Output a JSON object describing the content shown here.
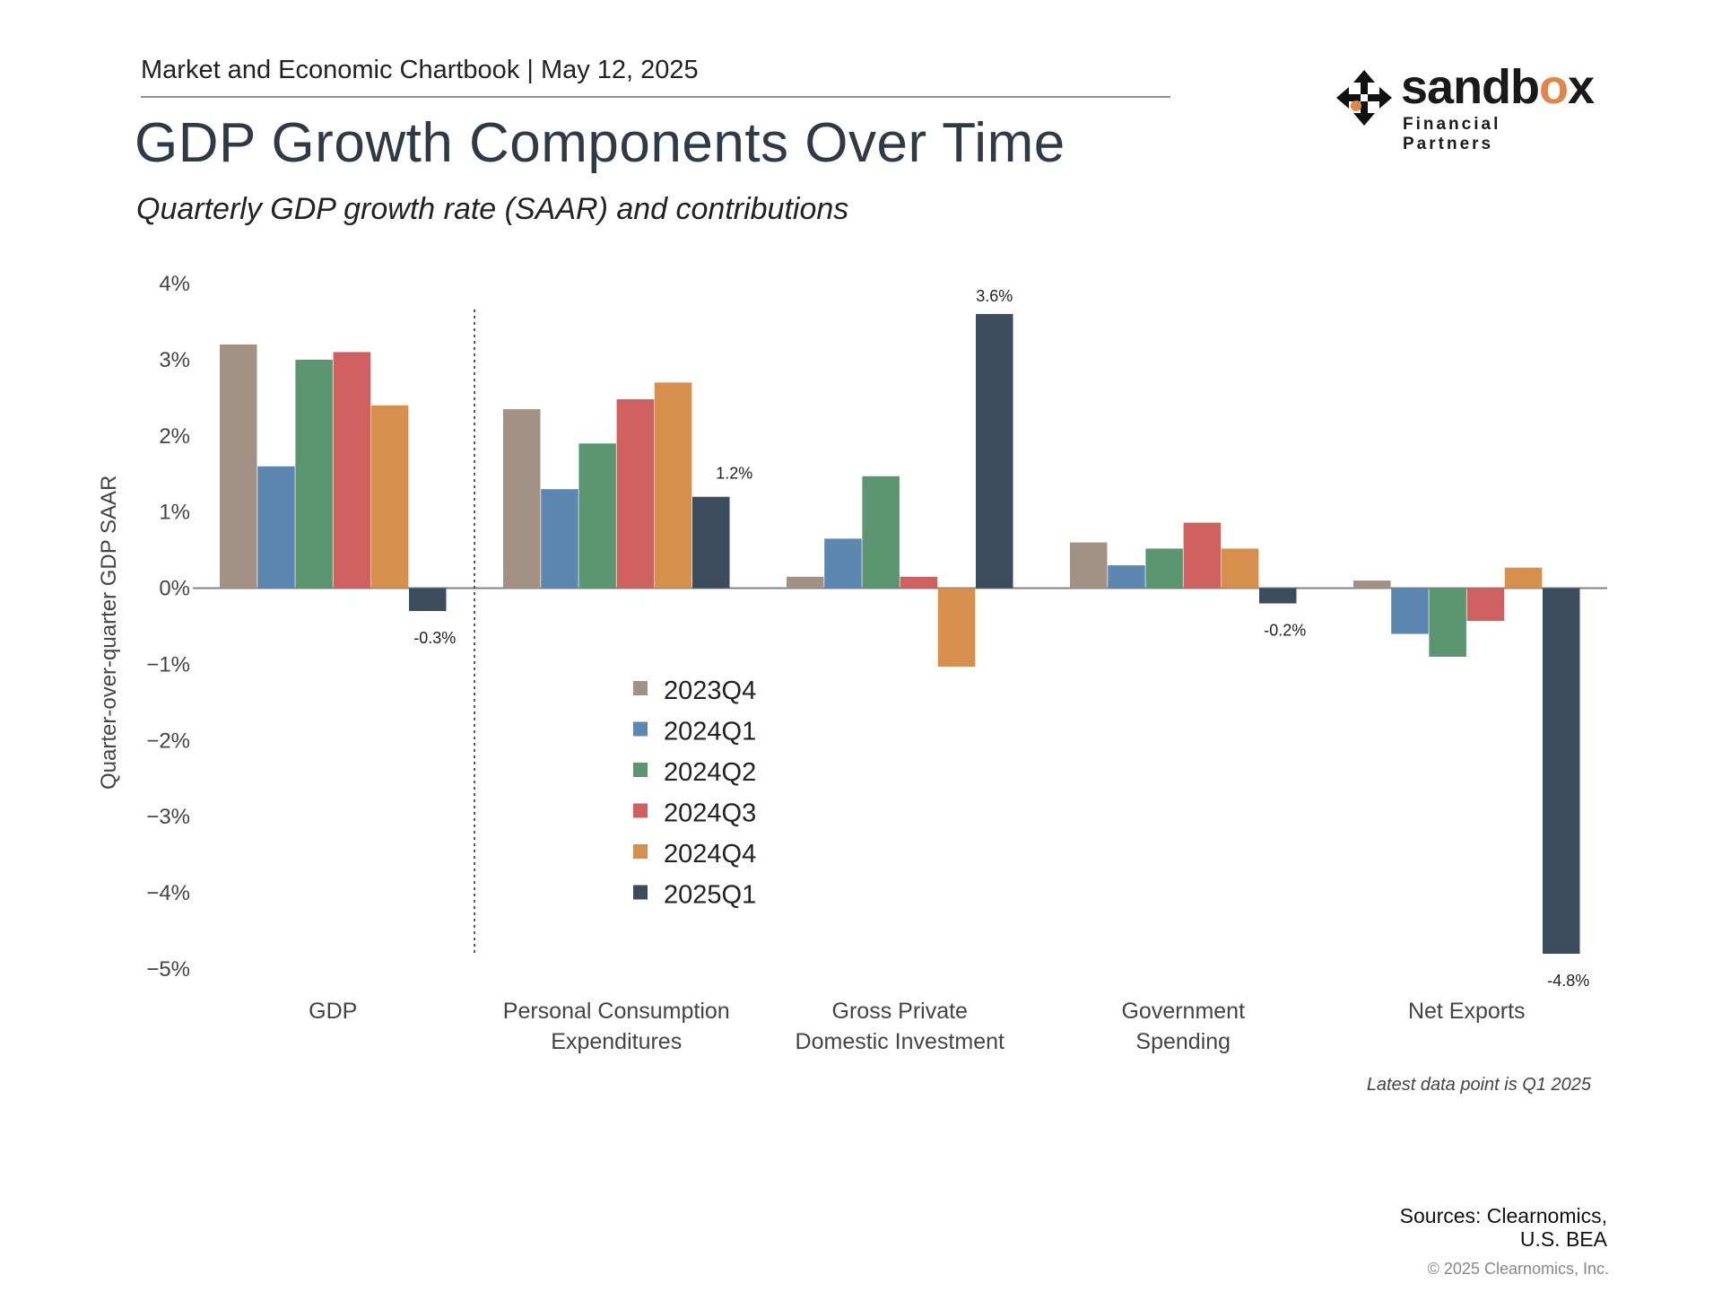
{
  "header": {
    "chartbook": "Market and Economic Chartbook | May 12, 2025",
    "title": "GDP Growth Components Over Time",
    "subtitle": "Quarterly GDP growth rate (SAAR) and contributions"
  },
  "logo": {
    "word_main": "sandb",
    "word_accent": "o",
    "word_end": "x",
    "tagline": "Financial Partners"
  },
  "footer": {
    "note": "Latest data point is Q1 2025",
    "sources_line1": "Sources: Clearnomics,",
    "sources_line2": "U.S. BEA",
    "copyright": "© 2025 Clearnomics, Inc."
  },
  "colors": {
    "2023Q4": "#a39183",
    "2024Q1": "#5b87b0",
    "2024Q2": "#5c9670",
    "2024Q3": "#d06060",
    "2024Q4": "#d68f4c",
    "2025Q1": "#3b4c5c"
  },
  "chart_data": {
    "type": "bar",
    "ylabel": "Quarter-over-quarter GDP SAAR",
    "ylim": [
      -5,
      4
    ],
    "yticks": [
      "4%",
      "3%",
      "2%",
      "1%",
      "0%",
      "−1%",
      "−2%",
      "−3%",
      "−4%",
      "−5%"
    ],
    "categories": [
      [
        "GDP"
      ],
      [
        "Personal Consumption",
        "Expenditures"
      ],
      [
        "Gross Private",
        "Domestic Investment"
      ],
      [
        "Government",
        "Spending"
      ],
      [
        "Net Exports"
      ]
    ],
    "series": [
      {
        "name": "2023Q4",
        "values": [
          3.2,
          2.35,
          0.15,
          0.6,
          0.1
        ]
      },
      {
        "name": "2024Q1",
        "values": [
          1.6,
          1.3,
          0.65,
          0.3,
          -0.6
        ]
      },
      {
        "name": "2024Q2",
        "values": [
          3.0,
          1.9,
          1.47,
          0.52,
          -0.9
        ]
      },
      {
        "name": "2024Q3",
        "values": [
          3.1,
          2.48,
          0.15,
          0.86,
          -0.43
        ]
      },
      {
        "name": "2024Q4",
        "values": [
          2.4,
          2.7,
          -1.03,
          0.52,
          0.27
        ]
      },
      {
        "name": "2025Q1",
        "values": [
          -0.3,
          1.2,
          3.6,
          -0.2,
          -4.8
        ]
      }
    ],
    "data_labels": [
      "-0.3%",
      "1.2%",
      "3.6%",
      "-0.2%",
      "-4.8%"
    ],
    "legend_position": "center-left",
    "grid": false
  }
}
